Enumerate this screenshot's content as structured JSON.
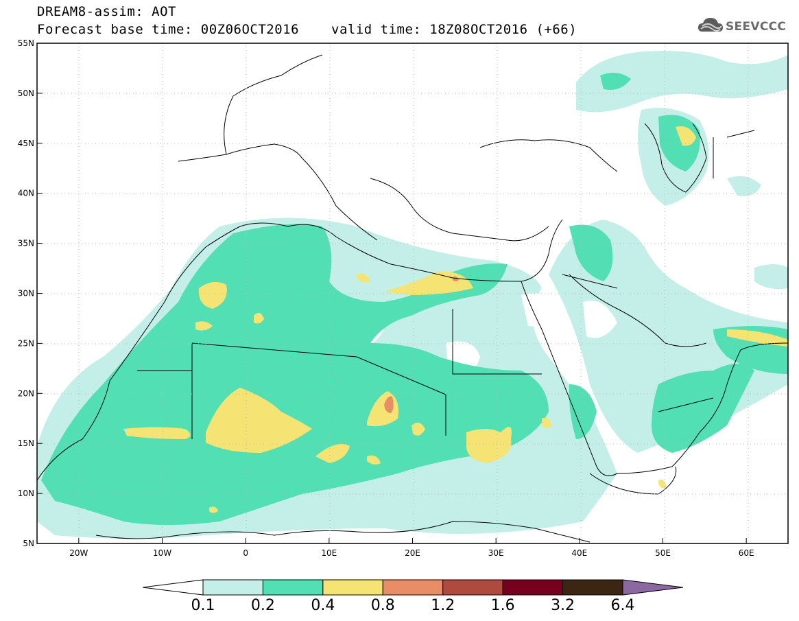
{
  "header": {
    "title": "DREAM8-assim: AOT",
    "forecast": "Forecast base time: 00Z06OCT2016",
    "valid": "valid time: 18Z08OCT2016 (+66)",
    "logo_text": "SEEVCCC"
  },
  "map": {
    "lon_range": [
      -25,
      65
    ],
    "lat_range": [
      5,
      55
    ],
    "lon_ticks": [
      "20W",
      "10W",
      "0",
      "10E",
      "20E",
      "30E",
      "40E",
      "50E",
      "60E"
    ],
    "lat_ticks": [
      "55N",
      "50N",
      "45N",
      "40N",
      "35N",
      "30N",
      "25N",
      "20N",
      "15N",
      "10N",
      "5N"
    ]
  },
  "colorbar": {
    "labels": [
      "0.1",
      "0.2",
      "0.4",
      "0.8",
      "1.2",
      "1.6",
      "3.2",
      "6.4"
    ],
    "colors": [
      "#ffffff",
      "#c4efe8",
      "#52dfb4",
      "#f5e473",
      "#e98d66",
      "#ae4a3e",
      "#76001e",
      "#3d2514",
      "#8c68a2"
    ]
  }
}
